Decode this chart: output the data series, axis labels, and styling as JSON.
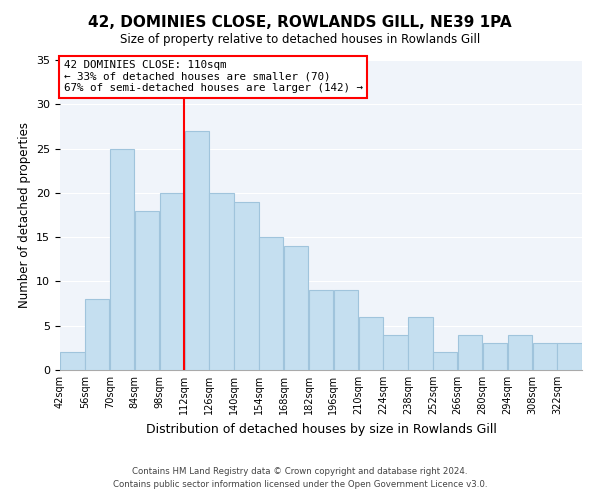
{
  "title": "42, DOMINIES CLOSE, ROWLANDS GILL, NE39 1PA",
  "subtitle": "Size of property relative to detached houses in Rowlands Gill",
  "xlabel": "Distribution of detached houses by size in Rowlands Gill",
  "ylabel": "Number of detached properties",
  "footer1": "Contains HM Land Registry data © Crown copyright and database right 2024.",
  "footer2": "Contains public sector information licensed under the Open Government Licence v3.0.",
  "bin_labels": [
    "42sqm",
    "56sqm",
    "70sqm",
    "84sqm",
    "98sqm",
    "112sqm",
    "126sqm",
    "140sqm",
    "154sqm",
    "168sqm",
    "182sqm",
    "196sqm",
    "210sqm",
    "224sqm",
    "238sqm",
    "252sqm",
    "266sqm",
    "280sqm",
    "294sqm",
    "308sqm",
    "322sqm"
  ],
  "bin_edges": [
    42,
    56,
    70,
    84,
    98,
    112,
    126,
    140,
    154,
    168,
    182,
    196,
    210,
    224,
    238,
    252,
    266,
    280,
    294,
    308,
    322,
    336
  ],
  "bar_heights": [
    2,
    8,
    25,
    18,
    20,
    27,
    20,
    19,
    15,
    14,
    9,
    9,
    6,
    4,
    6,
    2,
    4,
    3,
    4,
    3,
    3
  ],
  "bar_color": "#c5dff0",
  "bar_edge_color": "#a0c4dc",
  "vline_x": 112,
  "vline_color": "red",
  "annotation_line1": "42 DOMINIES CLOSE: 110sqm",
  "annotation_line2": "← 33% of detached houses are smaller (70)",
  "annotation_line3": "67% of semi-detached houses are larger (142) →",
  "annotation_box_color": "white",
  "annotation_box_edge": "red",
  "ylim": [
    0,
    35
  ],
  "yticks": [
    0,
    5,
    10,
    15,
    20,
    25,
    30,
    35
  ],
  "bg_color": "#f0f4fa"
}
